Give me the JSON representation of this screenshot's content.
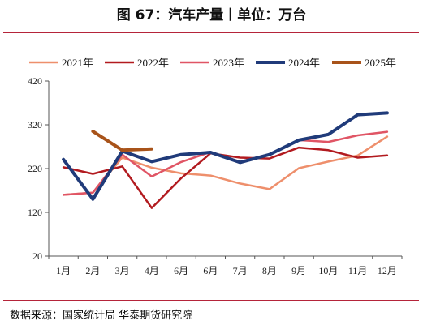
{
  "page": {
    "title": "图 67：汽车产量丨单位：万台",
    "source": "数据来源：国家统计局  华泰期货研究院"
  },
  "colors": {
    "rule": "#b5243a",
    "axis": "#555555"
  },
  "chart_data": {
    "type": "line",
    "categories": [
      "1月",
      "2月",
      "3月",
      "4月",
      "6月",
      "6月",
      "7月",
      "8月",
      "9月",
      "10月",
      "11月",
      "12月"
    ],
    "ylim": [
      20,
      420
    ],
    "yticks": [
      20,
      120,
      220,
      320,
      420
    ],
    "legend_position": "top",
    "grid": false,
    "series": [
      {
        "name": "2021年",
        "color": "#ee8f6c",
        "width": 2.5,
        "values": [
          160,
          165,
          245,
          222,
          209,
          204,
          186,
          173,
          221,
          236,
          250,
          293
        ]
      },
      {
        "name": "2022年",
        "color": "#b21a1f",
        "width": 2.5,
        "values": [
          223,
          208,
          225,
          130,
          198,
          255,
          245,
          243,
          268,
          262,
          245,
          250
        ]
      },
      {
        "name": "2023年",
        "color": "#e05565",
        "width": 2.5,
        "values": [
          160,
          165,
          252,
          202,
          235,
          258,
          236,
          253,
          285,
          281,
          296,
          304
        ]
      },
      {
        "name": "2024年",
        "color": "#203b7a",
        "width": 4,
        "values": [
          241,
          150,
          260,
          236,
          252,
          257,
          234,
          252,
          285,
          298,
          343,
          347
        ]
      },
      {
        "name": "2025年",
        "color": "#a8531a",
        "width": 4,
        "values": [
          null,
          305,
          262,
          265,
          null,
          null,
          null,
          null,
          null,
          null,
          null,
          null
        ]
      }
    ]
  }
}
